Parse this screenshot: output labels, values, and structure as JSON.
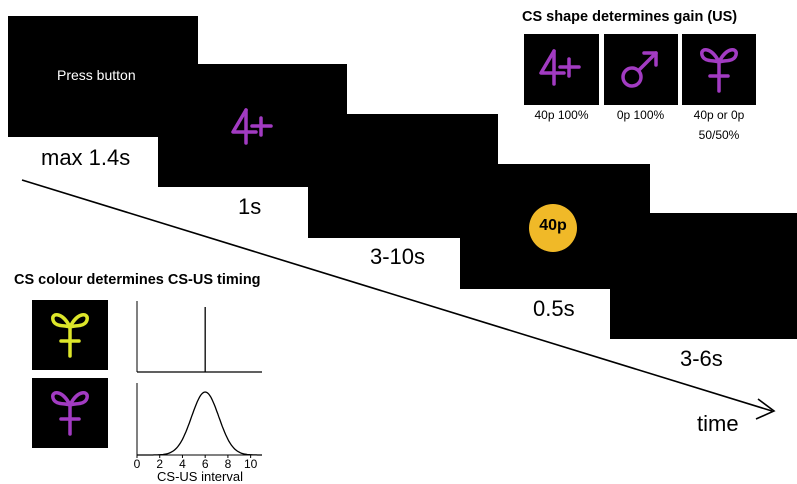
{
  "trial_sequence": {
    "press_text": "Press button",
    "stage_durations": [
      "max 1.4s",
      "1s",
      "3-10s",
      "0.5s",
      "3-6s"
    ],
    "outcome_coin_label": "40p",
    "time_label": "time"
  },
  "cs_shape_panel": {
    "title": "CS shape determines gain (US)",
    "items": [
      {
        "symbol": "four-plus-icon",
        "caption_line1": "40p 100%",
        "caption_line2": ""
      },
      {
        "symbol": "male-symbol-icon",
        "caption_line1": "0p 100%",
        "caption_line2": ""
      },
      {
        "symbol": "ribbon-cross-icon",
        "caption_line1": "40p or 0p",
        "caption_line2": "50/50%"
      }
    ]
  },
  "cs_colour_panel": {
    "title": "CS colour determines CS-US timing",
    "xlabel": "CS-US interval",
    "tick_labels": [
      "0",
      "2",
      "4",
      "6",
      "8",
      "10"
    ]
  },
  "chart_data": [
    {
      "type": "line",
      "series": [
        {
          "values_x": [
            0,
            6,
            6,
            6,
            11
          ],
          "values_y": [
            0,
            0,
            1,
            0,
            0
          ]
        }
      ],
      "xlim": [
        0,
        11
      ],
      "ylim": [
        0,
        1.1
      ]
    },
    {
      "type": "line",
      "series": [
        {
          "distribution": "gaussian",
          "mean": 6,
          "sd": 1.2
        }
      ],
      "xlim": [
        0,
        11
      ],
      "ylim": [
        0,
        1.1
      ],
      "xticks": [
        0,
        2,
        4,
        6,
        8,
        10
      ],
      "xlabel": "CS-US interval"
    }
  ],
  "colors": {
    "purple": "#a23bc2",
    "yellow": "#dde62a",
    "coin": "#f0b928",
    "screen": "#000000"
  }
}
